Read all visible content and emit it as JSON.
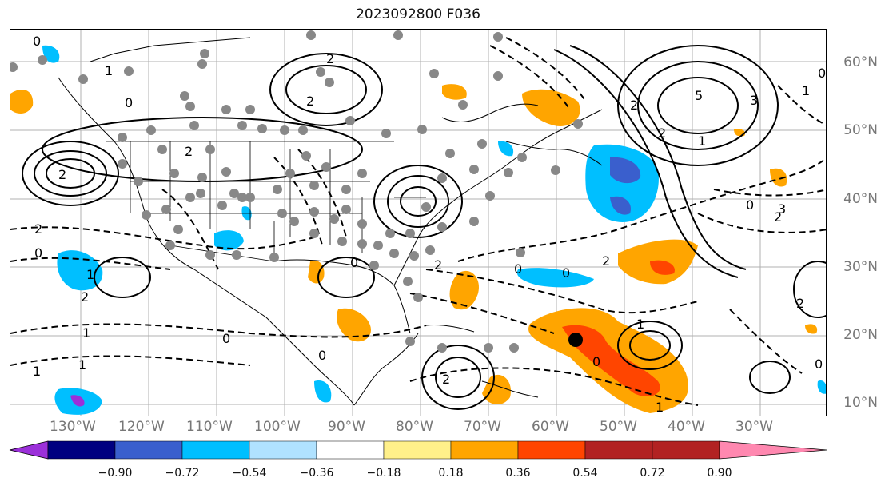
{
  "title": "2023092800 F036",
  "lat_labels": [
    "60°N",
    "50°N",
    "40°N",
    "30°N",
    "20°N",
    "10°N"
  ],
  "lon_labels": [
    "130°W",
    "120°W",
    "110°W",
    "100°W",
    "90°W",
    "80°W",
    "70°W",
    "60°W",
    "50°W",
    "40°W",
    "30°W"
  ],
  "colorbar": {
    "ticks": [
      "−0.90",
      "−0.72",
      "−0.54",
      "−0.36",
      "−0.18",
      "0.18",
      "0.36",
      "0.54",
      "0.72",
      "0.90"
    ],
    "colors": [
      "#9b30d9",
      "#000080",
      "#3a5fcd",
      "#00bfff",
      "#b0e2ff",
      "#ffffff",
      "#fff08a",
      "#ffa500",
      "#ff4500",
      "#b22222",
      "#ff88b0"
    ]
  },
  "contour_labels": [
    "0",
    "1",
    "2",
    "2",
    "0",
    "2",
    "2",
    "5",
    "3",
    "1",
    "0",
    "2",
    "1",
    "2",
    "3",
    "0",
    "2",
    "2",
    "0",
    "1",
    "0",
    "2",
    "0",
    "0",
    "2",
    "1",
    "1",
    "1",
    "2",
    "0",
    "0",
    "2",
    "1",
    "1",
    "0",
    "2",
    "0"
  ],
  "marker": "tropical-cyclone-center"
}
